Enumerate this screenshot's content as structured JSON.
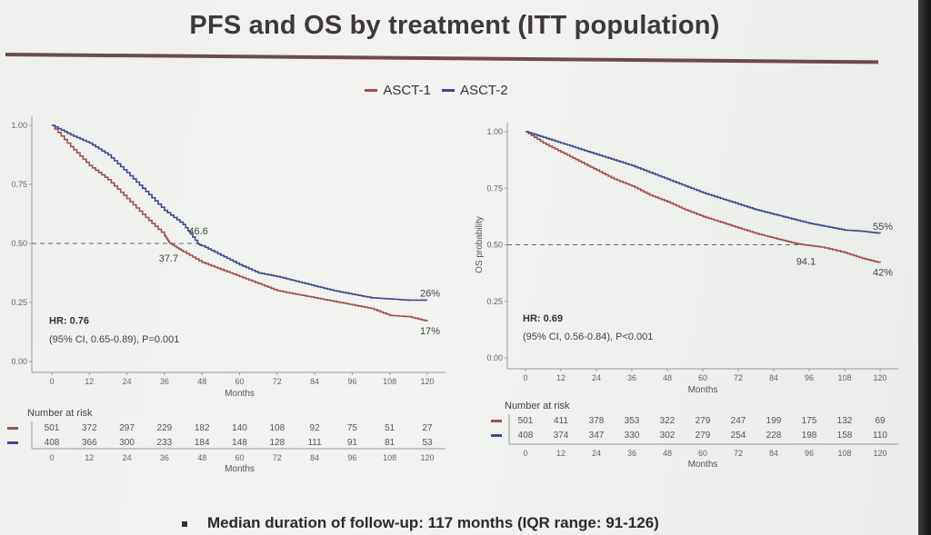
{
  "title": "PFS and OS by treatment (ITT population)",
  "legend": [
    {
      "label": "ASCT-1",
      "color": "#a0504e"
    },
    {
      "label": "ASCT-2",
      "color": "#3f4a8c"
    }
  ],
  "footer": "Median duration of follow-up: 117 months (IQR range: 91-126)",
  "chart_data": [
    {
      "type": "line",
      "title": "PFS",
      "xlabel": "Months",
      "ylabel": "",
      "xlim": [
        0,
        120
      ],
      "ylim": [
        0,
        1
      ],
      "xticks": [
        0,
        12,
        24,
        36,
        48,
        60,
        72,
        84,
        96,
        108,
        120
      ],
      "xtick_labels": [
        "0",
        "12",
        "24",
        "36",
        "48",
        "60",
        "72",
        "84",
        "96",
        "108",
        "120"
      ],
      "yticks": [
        0,
        0.25,
        0.5,
        0.75,
        1
      ],
      "ytick_labels": [
        "0.00",
        "0.25",
        "0.50",
        "0.75",
        "1.00"
      ],
      "reference_line": 0.5,
      "series": [
        {
          "name": "ASCT-1",
          "color": "#a0504e",
          "x": [
            0,
            6,
            12,
            18,
            24,
            30,
            36,
            37.7,
            42,
            48,
            54,
            60,
            66,
            72,
            78,
            84,
            90,
            96,
            102,
            108,
            114,
            120
          ],
          "y": [
            1.0,
            0.91,
            0.83,
            0.77,
            0.69,
            0.61,
            0.535,
            0.5,
            0.465,
            0.42,
            0.39,
            0.36,
            0.33,
            0.3,
            0.285,
            0.27,
            0.255,
            0.24,
            0.225,
            0.195,
            0.19,
            0.17
          ]
        },
        {
          "name": "ASCT-2",
          "color": "#3f4a8c",
          "x": [
            0,
            6,
            12,
            18,
            24,
            30,
            36,
            42,
            46.6,
            48,
            54,
            60,
            66,
            72,
            78,
            84,
            90,
            96,
            102,
            108,
            114,
            120
          ],
          "y": [
            1.0,
            0.96,
            0.925,
            0.875,
            0.8,
            0.72,
            0.64,
            0.58,
            0.5,
            0.49,
            0.45,
            0.41,
            0.375,
            0.36,
            0.34,
            0.32,
            0.3,
            0.285,
            0.27,
            0.265,
            0.26,
            0.26
          ]
        }
      ],
      "annotations": [
        {
          "text": "46.6",
          "x": 46.6,
          "y": 0.5,
          "series": "ASCT-2"
        },
        {
          "text": "37.7",
          "x": 37.7,
          "y": 0.5,
          "series": "ASCT-1"
        },
        {
          "text": "26%",
          "x": 120,
          "y": 0.26,
          "series": "ASCT-2"
        },
        {
          "text": "17%",
          "x": 120,
          "y": 0.17,
          "series": "ASCT-1"
        }
      ],
      "hr_text": "HR: 0.76",
      "ci_text": "(95% CI, 0.65-0.89), P=0.001",
      "risk_table": {
        "title": "Number at risk",
        "xlabel": "Months",
        "rows": [
          {
            "series": "ASCT-1",
            "values": [
              501,
              372,
              297,
              229,
              182,
              140,
              108,
              92,
              75,
              51,
              27
            ]
          },
          {
            "series": "ASCT-2",
            "values": [
              408,
              366,
              300,
              233,
              184,
              148,
              128,
              111,
              91,
              81,
              53
            ]
          }
        ]
      }
    },
    {
      "type": "line",
      "title": "OS",
      "xlabel": "Months",
      "ylabel": "OS probability",
      "xlim": [
        0,
        120
      ],
      "ylim": [
        0,
        1
      ],
      "xticks": [
        0,
        12,
        24,
        36,
        48,
        60,
        72,
        84,
        96,
        108,
        120
      ],
      "xtick_labels": [
        "0",
        "12",
        "24",
        "36",
        "48",
        "60",
        "72",
        "84",
        "96",
        "108",
        "120"
      ],
      "yticks": [
        0,
        0.25,
        0.5,
        0.75,
        1
      ],
      "ytick_labels": [
        "0.00",
        "0.25",
        "0.50",
        "0.75",
        "1.00"
      ],
      "reference_line": 0.5,
      "series": [
        {
          "name": "ASCT-1",
          "color": "#a0504e",
          "x": [
            0,
            6,
            12,
            18,
            24,
            30,
            36,
            42,
            48,
            54,
            60,
            66,
            72,
            78,
            84,
            90,
            94.1,
            100,
            108,
            114,
            120
          ],
          "y": [
            1.0,
            0.95,
            0.91,
            0.87,
            0.83,
            0.79,
            0.76,
            0.72,
            0.69,
            0.655,
            0.625,
            0.6,
            0.575,
            0.55,
            0.53,
            0.51,
            0.5,
            0.49,
            0.465,
            0.44,
            0.42
          ]
        },
        {
          "name": "ASCT-2",
          "color": "#3f4a8c",
          "x": [
            0,
            6,
            12,
            18,
            24,
            30,
            36,
            42,
            48,
            54,
            60,
            66,
            72,
            78,
            84,
            90,
            96,
            102,
            108,
            114,
            120
          ],
          "y": [
            1.0,
            0.975,
            0.95,
            0.925,
            0.9,
            0.875,
            0.85,
            0.82,
            0.79,
            0.76,
            0.73,
            0.705,
            0.68,
            0.655,
            0.635,
            0.615,
            0.595,
            0.58,
            0.565,
            0.56,
            0.55
          ]
        }
      ],
      "annotations": [
        {
          "text": "94.1",
          "x": 94.1,
          "y": 0.5,
          "series": "ASCT-1"
        },
        {
          "text": "55%",
          "x": 120,
          "y": 0.55,
          "series": "ASCT-2"
        },
        {
          "text": "42%",
          "x": 120,
          "y": 0.42,
          "series": "ASCT-1"
        }
      ],
      "hr_text": "HR: 0.69",
      "ci_text": "(95% CI, 0.56-0.84), P<0.001",
      "risk_table": {
        "title": "Number at risk",
        "xlabel": "Months",
        "rows": [
          {
            "series": "ASCT-1",
            "values": [
              501,
              411,
              378,
              353,
              322,
              279,
              247,
              199,
              175,
              132,
              69
            ]
          },
          {
            "series": "ASCT-2",
            "values": [
              408,
              374,
              347,
              330,
              302,
              279,
              254,
              228,
              198,
              158,
              110
            ]
          }
        ]
      }
    }
  ]
}
